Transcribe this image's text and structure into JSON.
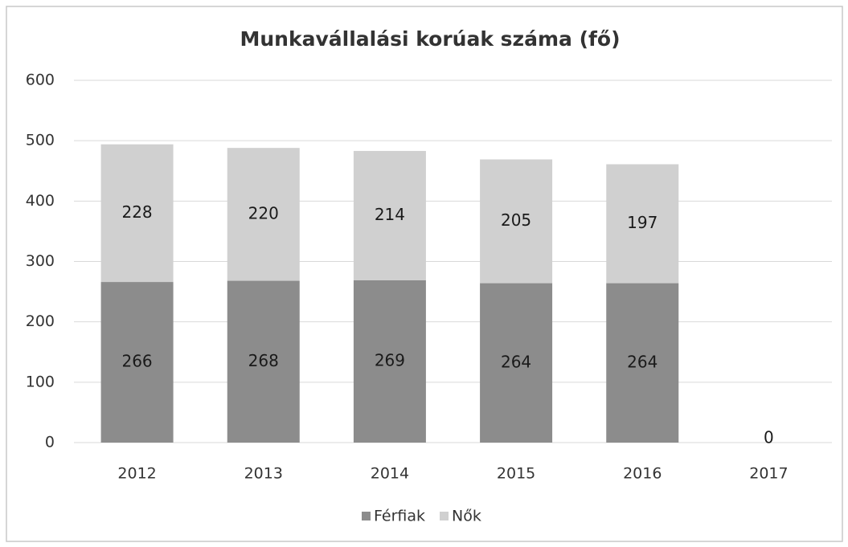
{
  "chart_data": {
    "type": "stacked_bar",
    "title": "Munkavállalási korúak száma (fő)",
    "categories": [
      "2012",
      "2013",
      "2014",
      "2015",
      "2016",
      "2017"
    ],
    "series": [
      {
        "name": "Férfiak",
        "color": "#8c8c8c",
        "values": [
          266,
          268,
          269,
          264,
          264,
          0
        ]
      },
      {
        "name": "Nők",
        "color": "#d0d0d0",
        "values": [
          228,
          220,
          214,
          205,
          197,
          null
        ]
      }
    ],
    "ylim": [
      0,
      600
    ],
    "yticks": [
      0,
      100,
      200,
      300,
      400,
      500,
      600
    ],
    "grid": true,
    "legend": "bottom"
  }
}
